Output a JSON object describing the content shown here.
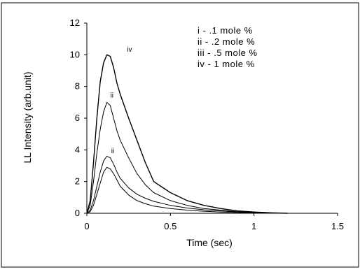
{
  "chart_data": {
    "type": "line",
    "title": "",
    "xlabel": "Time (sec)",
    "ylabel": "LL Intensity (arb.unit)",
    "xlim": [
      0,
      1.5
    ],
    "ylim": [
      0,
      12
    ],
    "x_ticks": [
      "0",
      "0.5",
      "1",
      "1.5"
    ],
    "y_ticks": [
      "0",
      "2",
      "4",
      "6",
      "8",
      "10",
      "12"
    ],
    "grid": false,
    "legend_position": "top-right",
    "legend": [
      "i - .1 mole %",
      "ii - .2 mole %",
      "iii - .5 mole %",
      "iv - 1 mole %"
    ],
    "curve_labels": [
      {
        "text": "iv",
        "x": 0.255,
        "y": 10.2
      },
      {
        "text": "ii",
        "x": 0.15,
        "y": 7.3
      },
      {
        "text": "ii",
        "x": 0.155,
        "y": 3.8
      }
    ],
    "series": [
      {
        "x": [
          0,
          0.02,
          0.04,
          0.06,
          0.08,
          0.1,
          0.12,
          0.14,
          0.16,
          0.18,
          0.2,
          0.25,
          0.3,
          0.35,
          0.4,
          0.5,
          0.6,
          0.7,
          0.8,
          0.9,
          1.0,
          1.1
        ],
        "values": [
          0,
          0.1,
          0.5,
          1.2,
          1.9,
          2.6,
          2.9,
          2.8,
          2.5,
          2.1,
          1.7,
          1.15,
          0.8,
          0.6,
          0.45,
          0.3,
          0.2,
          0.13,
          0.08,
          0.05,
          0.02,
          0.0
        ]
      },
      {
        "x": [
          0,
          0.02,
          0.04,
          0.06,
          0.08,
          0.1,
          0.12,
          0.14,
          0.16,
          0.18,
          0.2,
          0.25,
          0.3,
          0.35,
          0.4,
          0.5,
          0.6,
          0.7,
          0.8,
          0.9,
          1.0,
          1.1
        ],
        "values": [
          0,
          0.2,
          0.8,
          1.7,
          2.6,
          3.3,
          3.6,
          3.5,
          3.1,
          2.6,
          2.2,
          1.6,
          1.2,
          0.95,
          0.75,
          0.5,
          0.33,
          0.22,
          0.14,
          0.08,
          0.04,
          0.0
        ]
      },
      {
        "x": [
          0,
          0.02,
          0.04,
          0.06,
          0.08,
          0.1,
          0.12,
          0.14,
          0.16,
          0.18,
          0.2,
          0.25,
          0.3,
          0.35,
          0.4,
          0.5,
          0.6,
          0.7,
          0.8,
          0.9,
          1.0,
          1.1,
          1.15
        ],
        "values": [
          0,
          0.5,
          2.0,
          3.8,
          5.3,
          6.4,
          7.0,
          6.8,
          6.0,
          5.2,
          4.6,
          3.5,
          2.5,
          1.8,
          1.3,
          0.8,
          0.5,
          0.3,
          0.2,
          0.1,
          0.05,
          0.02,
          0.0
        ]
      },
      {
        "x": [
          0,
          0.02,
          0.04,
          0.06,
          0.08,
          0.1,
          0.12,
          0.14,
          0.16,
          0.18,
          0.2,
          0.25,
          0.3,
          0.35,
          0.4,
          0.5,
          0.6,
          0.7,
          0.8,
          0.9,
          1.0,
          1.1,
          1.2
        ],
        "values": [
          0,
          0.8,
          3.2,
          6.0,
          8.3,
          9.5,
          10.0,
          9.9,
          9.2,
          8.2,
          7.5,
          6.0,
          4.6,
          3.2,
          2.0,
          1.3,
          0.8,
          0.5,
          0.3,
          0.15,
          0.08,
          0.03,
          0.0
        ]
      }
    ]
  }
}
